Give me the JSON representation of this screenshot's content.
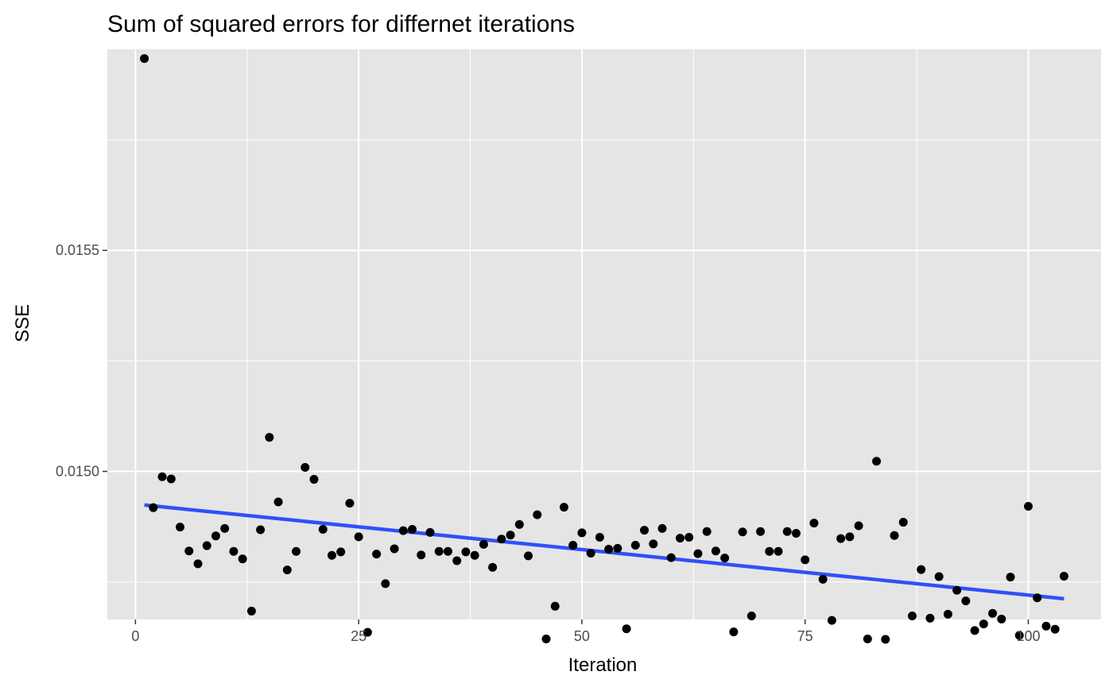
{
  "chart_data": {
    "type": "scatter",
    "title": "Sum of squared errors for differnet iterations",
    "xlabel": "Iteration",
    "ylabel": "SSE",
    "xlim": [
      -3.15,
      108.15
    ],
    "ylim": [
      0.014665,
      0.015955
    ],
    "x_ticks": [
      0,
      25,
      50,
      75,
      100
    ],
    "x_tick_labels": [
      "0",
      "25",
      "50",
      "75",
      "100"
    ],
    "y_ticks": [
      0.015,
      0.0155
    ],
    "y_tick_labels": [
      "0.0150",
      "0.0155"
    ],
    "grid": true,
    "legend": "none",
    "colors": {
      "panel": "#e5e5e5",
      "grid": "#ffffff",
      "points": "#000000",
      "trend": "#3050f8"
    },
    "series": [
      {
        "values": [
          [
            1,
            0.015934
          ],
          [
            2,
            0.014918
          ],
          [
            3,
            0.014988
          ],
          [
            4,
            0.014983
          ],
          [
            5,
            0.014874
          ],
          [
            6,
            0.01482
          ],
          [
            7,
            0.014791
          ],
          [
            8,
            0.014832
          ],
          [
            9,
            0.014854
          ],
          [
            10,
            0.014871
          ],
          [
            11,
            0.014819
          ],
          [
            12,
            0.014802
          ],
          [
            13,
            0.014684
          ],
          [
            14,
            0.014868
          ],
          [
            15,
            0.015077
          ],
          [
            16,
            0.014931
          ],
          [
            17,
            0.014777
          ],
          [
            18,
            0.014819
          ],
          [
            19,
            0.015009
          ],
          [
            20,
            0.014982
          ],
          [
            21,
            0.014869
          ],
          [
            22,
            0.01481
          ],
          [
            23,
            0.014818
          ],
          [
            24,
            0.014928
          ],
          [
            25,
            0.014852
          ],
          [
            26,
            0.014636
          ],
          [
            27,
            0.014813
          ],
          [
            28,
            0.014746
          ],
          [
            29,
            0.014825
          ],
          [
            30,
            0.014866
          ],
          [
            31,
            0.014869
          ],
          [
            32,
            0.014811
          ],
          [
            33,
            0.014862
          ],
          [
            34,
            0.014819
          ],
          [
            35,
            0.014819
          ],
          [
            36,
            0.014798
          ],
          [
            37,
            0.014818
          ],
          [
            38,
            0.01481
          ],
          [
            39,
            0.014835
          ],
          [
            40,
            0.014783
          ],
          [
            41,
            0.014847
          ],
          [
            42,
            0.014856
          ],
          [
            43,
            0.01488
          ],
          [
            44,
            0.014809
          ],
          [
            45,
            0.014902
          ],
          [
            46,
            0.014621
          ],
          [
            47,
            0.014695
          ],
          [
            48,
            0.014919
          ],
          [
            49,
            0.014833
          ],
          [
            50,
            0.014861
          ],
          [
            51,
            0.014815
          ],
          [
            52,
            0.014851
          ],
          [
            53,
            0.014824
          ],
          [
            54,
            0.014826
          ],
          [
            55,
            0.014644
          ],
          [
            56,
            0.014833
          ],
          [
            57,
            0.014867
          ],
          [
            58,
            0.014836
          ],
          [
            59,
            0.014871
          ],
          [
            60,
            0.014805
          ],
          [
            61,
            0.014849
          ],
          [
            62,
            0.014851
          ],
          [
            63,
            0.014814
          ],
          [
            64,
            0.014864
          ],
          [
            65,
            0.01482
          ],
          [
            66,
            0.014804
          ],
          [
            67,
            0.014637
          ],
          [
            68,
            0.014863
          ],
          [
            69,
            0.014673
          ],
          [
            70,
            0.014864
          ],
          [
            71,
            0.014819
          ],
          [
            72,
            0.014819
          ],
          [
            73,
            0.014864
          ],
          [
            74,
            0.01486
          ],
          [
            75,
            0.0148
          ],
          [
            76,
            0.014883
          ],
          [
            77,
            0.014756
          ],
          [
            78,
            0.014663
          ],
          [
            79,
            0.014848
          ],
          [
            80,
            0.014852
          ],
          [
            81,
            0.014877
          ],
          [
            82,
            0.014621
          ],
          [
            83,
            0.015023
          ],
          [
            84,
            0.01462
          ],
          [
            85,
            0.014855
          ],
          [
            86,
            0.014885
          ],
          [
            87,
            0.014673
          ],
          [
            88,
            0.014778
          ],
          [
            89,
            0.014668
          ],
          [
            90,
            0.014762
          ],
          [
            91,
            0.014677
          ],
          [
            92,
            0.014731
          ],
          [
            93,
            0.014707
          ],
          [
            94,
            0.01464
          ],
          [
            95,
            0.014655
          ],
          [
            96,
            0.014679
          ],
          [
            97,
            0.014666
          ],
          [
            98,
            0.014761
          ],
          [
            99,
            0.014629
          ],
          [
            100,
            0.014921
          ],
          [
            101,
            0.014714
          ],
          [
            102,
            0.01465
          ],
          [
            103,
            0.014643
          ],
          [
            104,
            0.014763
          ]
        ]
      }
    ],
    "trend_line": {
      "x": [
        1,
        104
      ],
      "y": [
        0.014924,
        0.014712
      ]
    }
  }
}
